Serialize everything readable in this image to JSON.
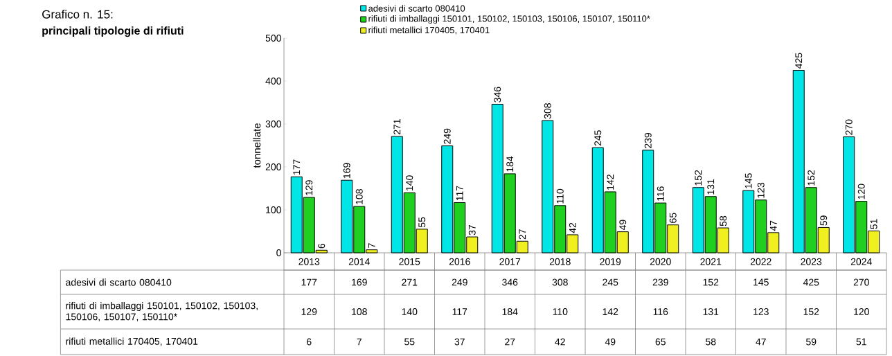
{
  "chart_data": {
    "type": "bar",
    "title": "Grafico n. 15:",
    "subtitle": "principali tipologie di rifiuti",
    "ylabel": "tonnellate",
    "categories": [
      "2013",
      "2014",
      "2015",
      "2016",
      "2017",
      "2018",
      "2019",
      "2020",
      "2021",
      "2022",
      "2023",
      "2024"
    ],
    "series": [
      {
        "name": "adesivi di scarto 080410",
        "color": "#00e5e5",
        "values": [
          177,
          169,
          271,
          249,
          346,
          308,
          245,
          239,
          152,
          145,
          425,
          270
        ]
      },
      {
        "name": "rifiuti di imballaggi 150101, 150102, 150103, 150106, 150107, 150110*",
        "color": "#20d020",
        "values": [
          129,
          108,
          140,
          117,
          184,
          110,
          142,
          116,
          131,
          123,
          152,
          120
        ]
      },
      {
        "name": "rifiuti metallici 170405, 170401",
        "color": "#f0f020",
        "values": [
          6,
          7,
          55,
          37,
          27,
          42,
          49,
          65,
          58,
          47,
          59,
          51
        ]
      }
    ],
    "annotations": [
      "177",
      "169",
      "271",
      "249",
      "346",
      "308",
      "245",
      "239",
      "152",
      "145",
      "425",
      "270",
      "129",
      "108",
      "140",
      "117",
      "184",
      "110",
      "142",
      "116",
      "131",
      "123",
      "152",
      "120",
      "6",
      "7",
      "55",
      "37",
      "27",
      "42",
      "49",
      "65",
      "58",
      "47",
      "59",
      "51"
    ],
    "ylim": [
      0,
      500
    ],
    "yticks": [
      0,
      100,
      200,
      300,
      400,
      500
    ],
    "data_labels": true,
    "legend": "top",
    "grid": false
  }
}
